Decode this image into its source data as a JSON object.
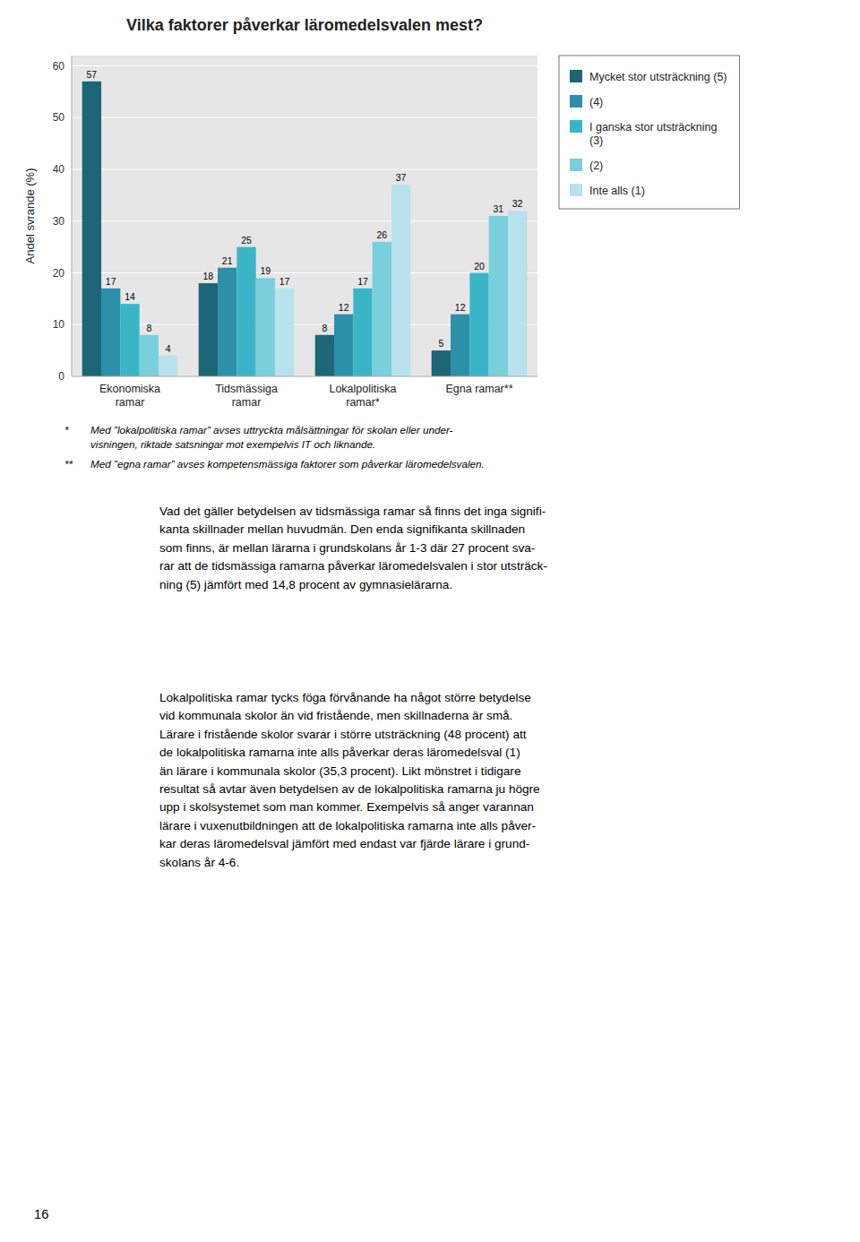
{
  "chart_data": {
    "type": "bar",
    "title": "Vilka faktorer påverkar läromedelsvalen mest?",
    "categories": [
      "Ekonomiska\nramar",
      "Tidsmässiga\nramar",
      "Lokalpolitiska\nramar*",
      "Egna ramar**"
    ],
    "series": [
      {
        "name": "Mycket stor utsträckning (5)",
        "color": "#1c6678",
        "values": [
          57,
          18,
          8,
          5
        ]
      },
      {
        "name": "(4)",
        "color": "#2b90a8",
        "values": [
          17,
          21,
          12,
          12
        ]
      },
      {
        "name": "I ganska stor utsträckning\n(3)",
        "color": "#3ab5c8",
        "values": [
          14,
          25,
          17,
          20
        ]
      },
      {
        "name": "(2)",
        "color": "#7acfdc",
        "values": [
          8,
          19,
          26,
          31
        ]
      },
      {
        "name": "Inte alls (1)",
        "color": "#b8e2ec",
        "values": [
          4,
          17,
          37,
          32
        ]
      }
    ],
    "ylabel": "Andel svrande (%)",
    "ylim": [
      0,
      62
    ],
    "yticks": [
      0,
      10,
      20,
      30,
      40,
      50,
      60
    ],
    "grid": true,
    "legend": "right",
    "data_labels": true
  },
  "page": {
    "footnotes": [
      {
        "mark": "*",
        "text": "Med ”lokalpolitiska ramar” avses uttryckta målsättningar för skolan eller under-\nvisningen, riktade satsningar mot exempelvis IT och liknande."
      },
      {
        "mark": "**",
        "text": "Med ”egna ramar” avses kompetensmässiga faktorer som påverkar läromedelsvalen."
      }
    ],
    "body": [
      "Vad det gäller betydelsen av tidsmässiga ramar så finns det inga signifi-\nkanta skillnader mellan huvudmän. Den enda signifikanta skillnaden\nsom finns, är mellan lärarna i grundskolans år 1-3 där 27 procent sva-\nrar att de tidsmässiga ramarna påverkar läromedelsvalen i stor utsträck-\nning (5) jämfört med 14,8 procent av gymnasielärarna.",
      "Lokalpolitiska ramar tycks föga förvånande ha något större betydelse\nvid kommunala skolor än vid fristående, men skillnaderna är små.\nLärare i fristående skolor svarar i större utsträckning (48 procent) att\nde lokalpolitiska ramarna inte alls påverkar deras läromedelsval (1)\nän lärare i kommunala skolor (35,3 procent). Likt mönstret i tidigare\nresultat så avtar även betydelsen av de lokalpolitiska ramarna ju högre\nupp i skolsystemet som man kommer. Exempelvis så anger varannan\nlärare i vuxenutbildningen att de lokalpolitiska ramarna inte alls påver-\nkar deras läromedelsval jämfört med endast var fjärde lärare i grund-\nskolans år 4-6."
    ],
    "page_number": "16"
  }
}
